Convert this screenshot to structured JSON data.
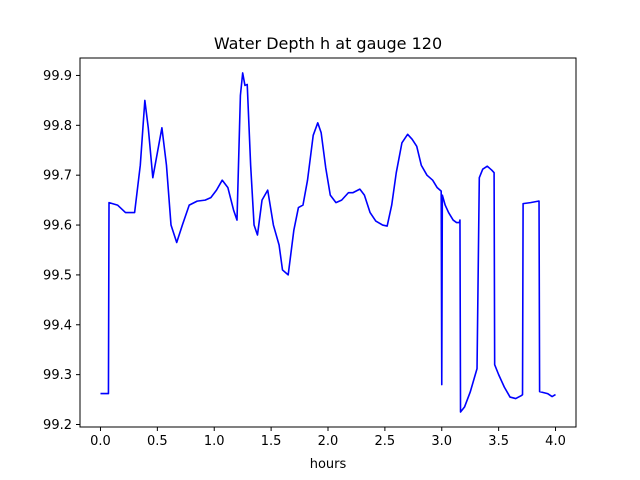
{
  "chart_data": {
    "type": "line",
    "title": "Water Depth h at gauge 120",
    "xlabel": "hours",
    "ylabel": "",
    "xlim": [
      -0.18,
      4.18
    ],
    "ylim": [
      99.195,
      99.935
    ],
    "xticks": [
      0.0,
      0.5,
      1.0,
      1.5,
      2.0,
      2.5,
      3.0,
      3.5,
      4.0
    ],
    "xtick_labels": [
      "0.0",
      "0.5",
      "1.0",
      "1.5",
      "2.0",
      "2.5",
      "3.0",
      "3.5",
      "4.0"
    ],
    "yticks": [
      99.2,
      99.3,
      99.4,
      99.5,
      99.6,
      99.7,
      99.8,
      99.9
    ],
    "ytick_labels": [
      "99.2",
      "99.3",
      "99.4",
      "99.5",
      "99.6",
      "99.7",
      "99.8",
      "99.9"
    ],
    "grid": false,
    "series": [
      {
        "color": "#0000ff",
        "x": [
          0.0,
          0.07,
          0.075,
          0.15,
          0.22,
          0.3,
          0.35,
          0.39,
          0.42,
          0.46,
          0.5,
          0.54,
          0.58,
          0.62,
          0.67,
          0.72,
          0.78,
          0.85,
          0.92,
          0.97,
          1.02,
          1.07,
          1.12,
          1.17,
          1.2,
          1.23,
          1.25,
          1.27,
          1.29,
          1.32,
          1.35,
          1.38,
          1.42,
          1.47,
          1.52,
          1.57,
          1.6,
          1.65,
          1.7,
          1.74,
          1.78,
          1.82,
          1.87,
          1.91,
          1.94,
          1.98,
          2.02,
          2.07,
          2.12,
          2.18,
          2.22,
          2.28,
          2.32,
          2.37,
          2.42,
          2.48,
          2.52,
          2.56,
          2.6,
          2.65,
          2.7,
          2.74,
          2.78,
          2.82,
          2.87,
          2.92,
          2.96,
          2.995,
          3.0,
          3.005,
          3.03,
          3.06,
          3.1,
          3.13,
          3.155,
          3.16,
          3.165,
          3.2,
          3.25,
          3.31,
          3.33,
          3.36,
          3.4,
          3.44,
          3.46,
          3.465,
          3.5,
          3.55,
          3.6,
          3.65,
          3.7,
          3.71,
          3.715,
          3.78,
          3.85,
          3.855,
          3.86,
          3.93,
          3.97,
          4.0
        ],
        "y": [
          99.262,
          99.262,
          99.645,
          99.64,
          99.625,
          99.625,
          99.72,
          99.85,
          99.795,
          99.695,
          99.745,
          99.795,
          99.72,
          99.6,
          99.565,
          99.6,
          99.64,
          99.648,
          99.65,
          99.655,
          99.67,
          99.69,
          99.675,
          99.63,
          99.61,
          99.86,
          99.905,
          99.88,
          99.882,
          99.72,
          99.6,
          99.58,
          99.65,
          99.67,
          99.6,
          99.56,
          99.51,
          99.5,
          99.59,
          99.635,
          99.64,
          99.69,
          99.78,
          99.805,
          99.785,
          99.715,
          99.66,
          99.645,
          99.65,
          99.665,
          99.665,
          99.672,
          99.66,
          99.625,
          99.608,
          99.6,
          99.598,
          99.64,
          99.705,
          99.765,
          99.782,
          99.772,
          99.758,
          99.72,
          99.7,
          99.69,
          99.675,
          99.668,
          99.28,
          99.66,
          99.64,
          99.625,
          99.61,
          99.605,
          99.605,
          99.61,
          99.225,
          99.235,
          99.265,
          99.312,
          99.695,
          99.712,
          99.718,
          99.71,
          99.705,
          99.32,
          99.3,
          99.275,
          99.255,
          99.252,
          99.258,
          99.26,
          99.643,
          99.645,
          99.648,
          99.648,
          99.266,
          99.262,
          99.256,
          99.26
        ]
      }
    ]
  }
}
